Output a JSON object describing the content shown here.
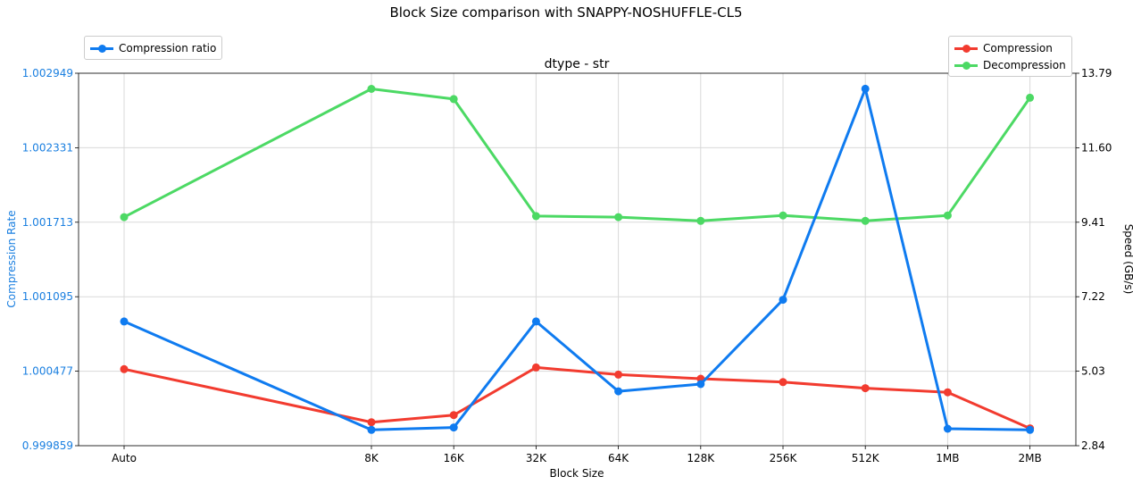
{
  "chart_data": {
    "type": "line",
    "suptitle": "Block Size comparison with SNAPPY-NOSHUFFLE-CL5",
    "title": "dtype - str",
    "xlabel": "Block Size",
    "ylabel_left": "Compression Rate",
    "ylabel_right": "Speed (GB/s)",
    "categories": [
      "Auto",
      "8K",
      "16K",
      "32K",
      "64K",
      "128K",
      "256K",
      "512K",
      "1MB",
      "2MB"
    ],
    "left_axis": {
      "ticks": [
        "0.999859",
        "1.000477",
        "1.001095",
        "1.001713",
        "1.002331",
        "1.002949"
      ],
      "ylim": [
        0.999859,
        1.002949
      ],
      "color": "#1a7fe0"
    },
    "right_axis": {
      "ticks": [
        "2.84",
        "5.03",
        "7.22",
        "9.41",
        "11.60",
        "13.79"
      ],
      "ylim": [
        2.84,
        13.79
      ],
      "color": "#000000"
    },
    "series": [
      {
        "name": "Compression ratio",
        "axis": "left",
        "color": "#0f7bf0",
        "values": [
          1.00089,
          0.99999,
          1.00001,
          1.00089,
          1.00031,
          1.00037,
          1.00107,
          1.00282,
          1.0,
          0.99999
        ]
      },
      {
        "name": "Compression",
        "axis": "right",
        "color": "#f23b2f",
        "values": [
          5.09,
          3.53,
          3.74,
          5.14,
          4.93,
          4.81,
          4.71,
          4.53,
          4.41,
          3.35
        ]
      },
      {
        "name": "Decompression",
        "axis": "right",
        "color": "#4cd964",
        "values": [
          9.56,
          13.33,
          13.03,
          9.59,
          9.56,
          9.45,
          9.61,
          9.45,
          9.61,
          13.07
        ]
      }
    ],
    "grid": true,
    "legend_left_placement": "top-left",
    "legend_right_placement": "top-right"
  }
}
